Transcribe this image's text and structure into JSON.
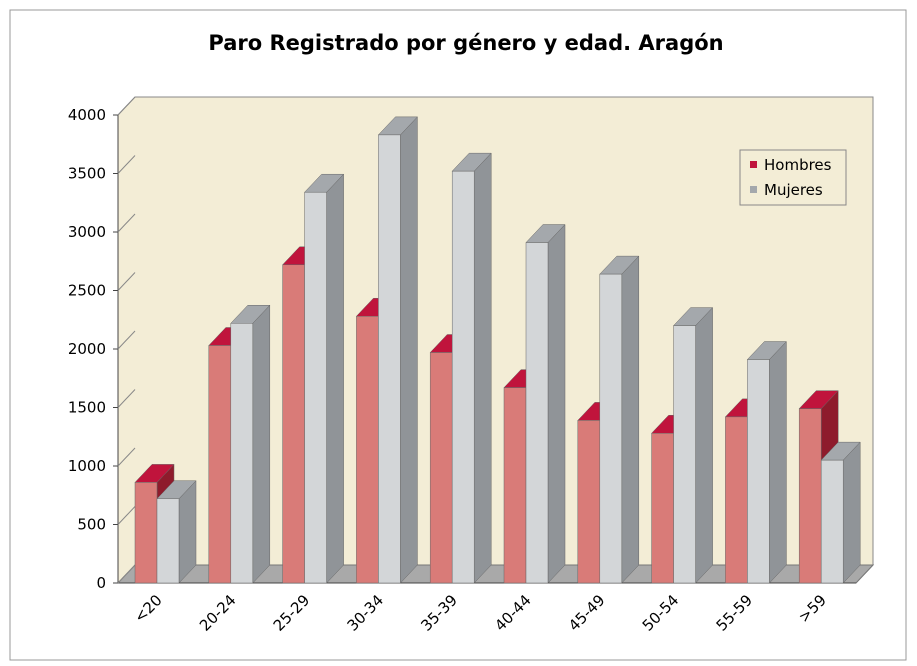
{
  "chart_data": {
    "type": "bar3d",
    "title": "Paro Registrado por género y edad. Aragón",
    "categories": [
      "<20",
      "20-24",
      "25-29",
      "30-34",
      "35-39",
      "40-44",
      "45-49",
      "50-54",
      "55-59",
      ">59"
    ],
    "series": [
      {
        "name": "Hombres",
        "color": "#d97b78",
        "values": [
          860,
          2030,
          2720,
          2280,
          1970,
          1670,
          1390,
          1280,
          1420,
          1490
        ]
      },
      {
        "name": "Mujeres",
        "color": "#d3d6d8",
        "values": [
          720,
          2220,
          3340,
          3830,
          3520,
          2910,
          2640,
          2200,
          1910,
          1050
        ]
      }
    ],
    "ylim": [
      0,
      4000
    ],
    "yticks": [
      0,
      500,
      1000,
      1500,
      2000,
      2500,
      3000,
      3500,
      4000
    ],
    "legend": "upper right"
  }
}
